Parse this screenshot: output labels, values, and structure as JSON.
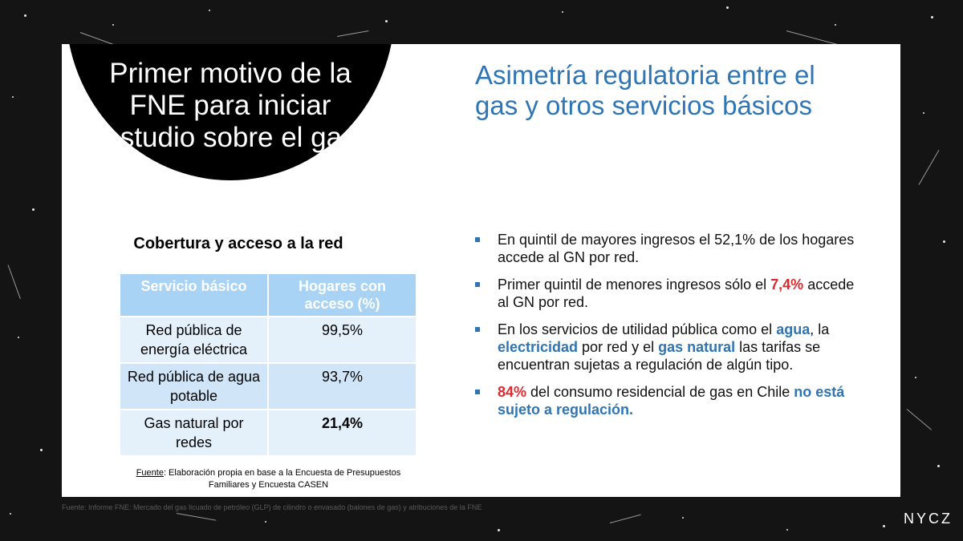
{
  "slide": {
    "circle_title": "Primer motivo de la FNE para iniciar estudio sobre el gas",
    "right_title": "Asimetría regulatoria entre el gas y otros servicios básicos"
  },
  "table": {
    "title": "Cobertura y acceso a la red",
    "headers": [
      "Servicio básico",
      "Hogares con acceso (%)"
    ],
    "rows": [
      {
        "service": "Red pública de energía eléctrica",
        "value": "99,5%"
      },
      {
        "service": "Red pública de agua potable",
        "value": "93,7%"
      },
      {
        "service": "Gas natural por redes",
        "value": "21,4%"
      }
    ]
  },
  "source": {
    "label": "Fuente",
    "text": ": Elaboración propia en base a la Encuesta de Presupuestos Familiares y Encuesta CASEN"
  },
  "bullets": [
    {
      "parts": [
        {
          "text": "En quintil de mayores ingresos el 52,1% de los hogares accede al GN por red.",
          "style": "normal"
        }
      ]
    },
    {
      "parts": [
        {
          "text": "Primer quintil de menores ingresos sólo el ",
          "style": "normal"
        },
        {
          "text": "7,4%",
          "style": "red"
        },
        {
          "text": " accede al GN por red.",
          "style": "normal"
        }
      ]
    },
    {
      "parts": [
        {
          "text": "En los servicios de utilidad pública como el ",
          "style": "normal"
        },
        {
          "text": "agua",
          "style": "blue"
        },
        {
          "text": ", la ",
          "style": "normal"
        },
        {
          "text": "electricidad",
          "style": "blue"
        },
        {
          "text": " por red y el ",
          "style": "normal"
        },
        {
          "text": "gas natural",
          "style": "blue"
        },
        {
          "text": " las tarifas se encuentran sujetas a regulación de algún tipo.",
          "style": "normal"
        }
      ]
    },
    {
      "parts": [
        {
          "text": "84%",
          "style": "red"
        },
        {
          "text": " del consumo residencial de gas en Chile ",
          "style": "normal"
        },
        {
          "text": "no está sujeto a regulación.",
          "style": "blue"
        }
      ]
    }
  ],
  "footer": {
    "source": "Fuente: Informe FNE: Mercado del gas licuado de petróleo (GLP) de cilindro o envasado (balones de gas) y atribuciones de la FNE",
    "logo": "NYCZ"
  },
  "colors": {
    "accent_blue": "#2e75b6",
    "highlight_red": "#e0282e",
    "table_header": "#a9d3f5"
  }
}
